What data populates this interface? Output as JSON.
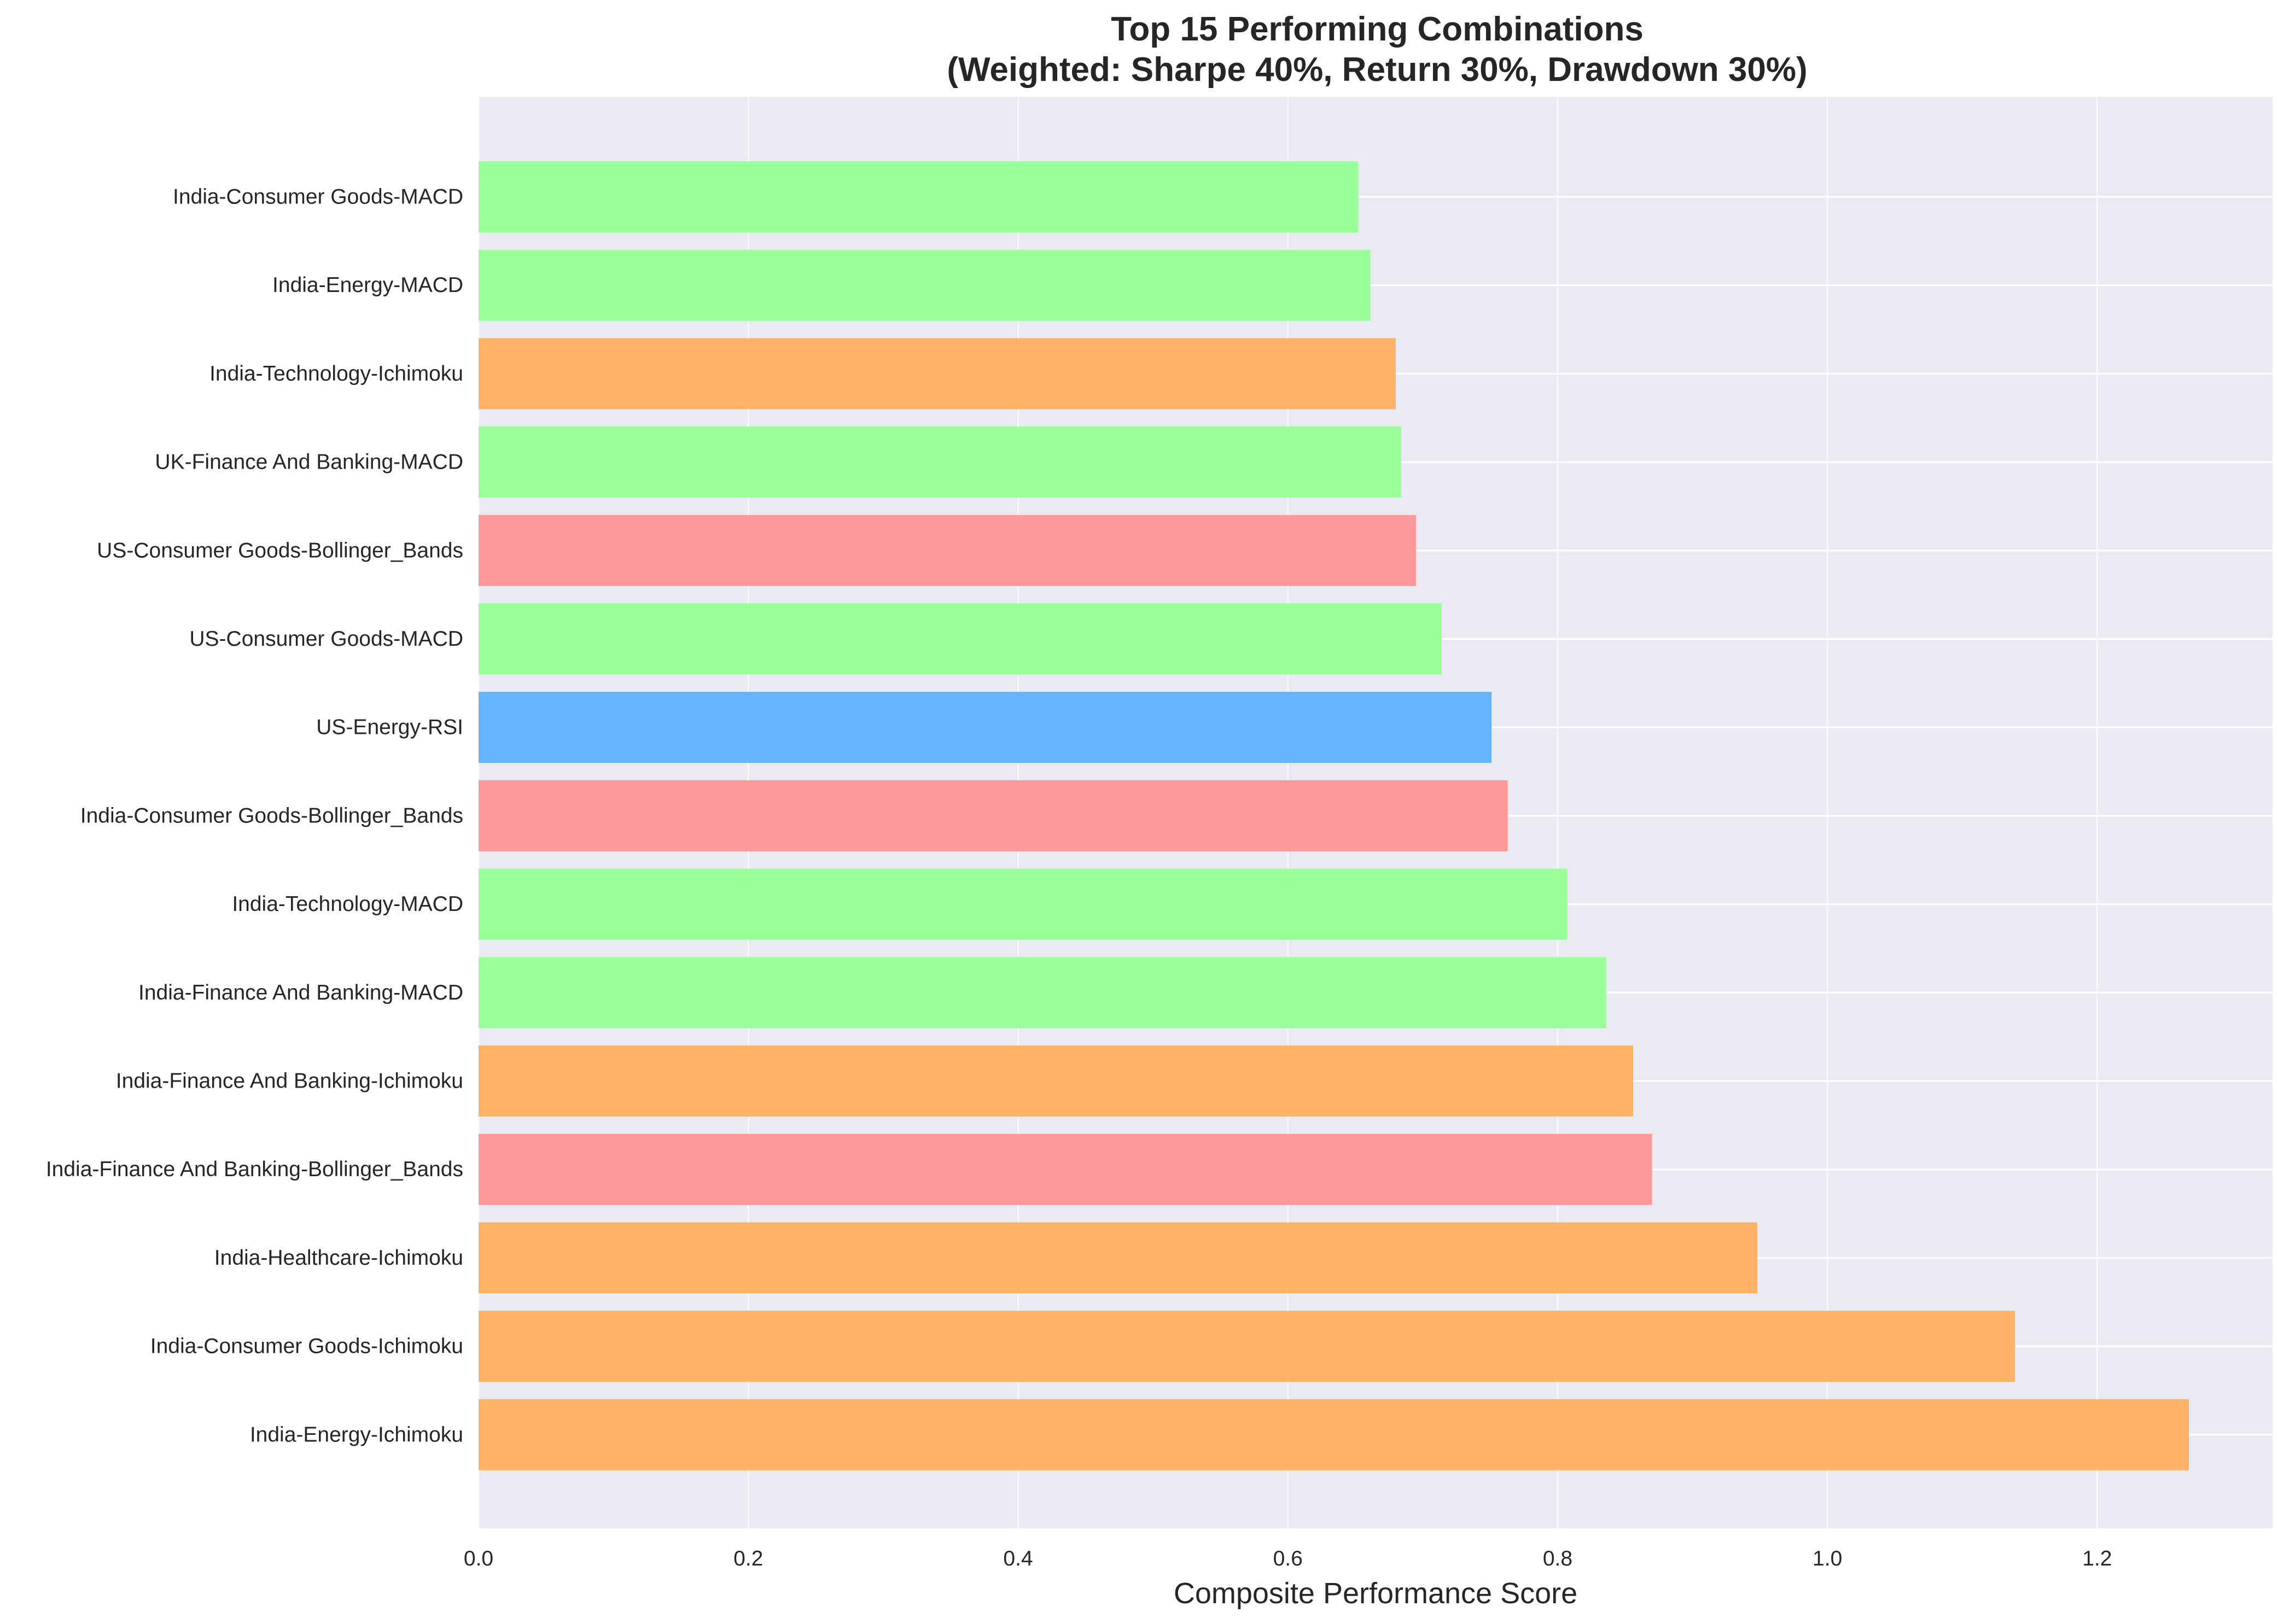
{
  "chart_data": {
    "type": "bar",
    "orientation": "horizontal",
    "title": "Top 15 Performing Combinations",
    "subtitle": "(Weighted: Sharpe 40%, Return 30%, Drawdown 30%)",
    "xlabel": "Composite Performance Score",
    "ylabel": "",
    "xlim": [
      0,
      1.33
    ],
    "xticks": [
      "0.0",
      "0.2",
      "0.4",
      "0.6",
      "0.8",
      "1.0",
      "1.2"
    ],
    "grid": true,
    "background_color": "#eaeaf2",
    "categories": [
      "India-Consumer Goods-MACD",
      "India-Energy-MACD",
      "India-Technology-Ichimoku",
      "UK-Finance And Banking-MACD",
      "US-Consumer Goods-Bollinger_Bands",
      "US-Consumer Goods-MACD",
      "US-Energy-RSI",
      "India-Consumer Goods-Bollinger_Bands",
      "India-Technology-MACD",
      "India-Finance And Banking-MACD",
      "India-Finance And Banking-Ichimoku",
      "India-Finance And Banking-Bollinger_Bands",
      "India-Healthcare-Ichimoku",
      "India-Consumer Goods-Ichimoku",
      "India-Energy-Ichimoku"
    ],
    "values": [
      0.652,
      0.661,
      0.68,
      0.684,
      0.695,
      0.714,
      0.751,
      0.763,
      0.807,
      0.836,
      0.856,
      0.87,
      0.948,
      1.139,
      1.268
    ],
    "colors": [
      "#99ff99",
      "#99ff99",
      "#ffb366",
      "#99ff99",
      "#ff9999",
      "#99ff99",
      "#66b3ff",
      "#ff9999",
      "#99ff99",
      "#99ff99",
      "#ffb366",
      "#ff9999",
      "#ffb366",
      "#ffb366",
      "#ffb366"
    ]
  }
}
